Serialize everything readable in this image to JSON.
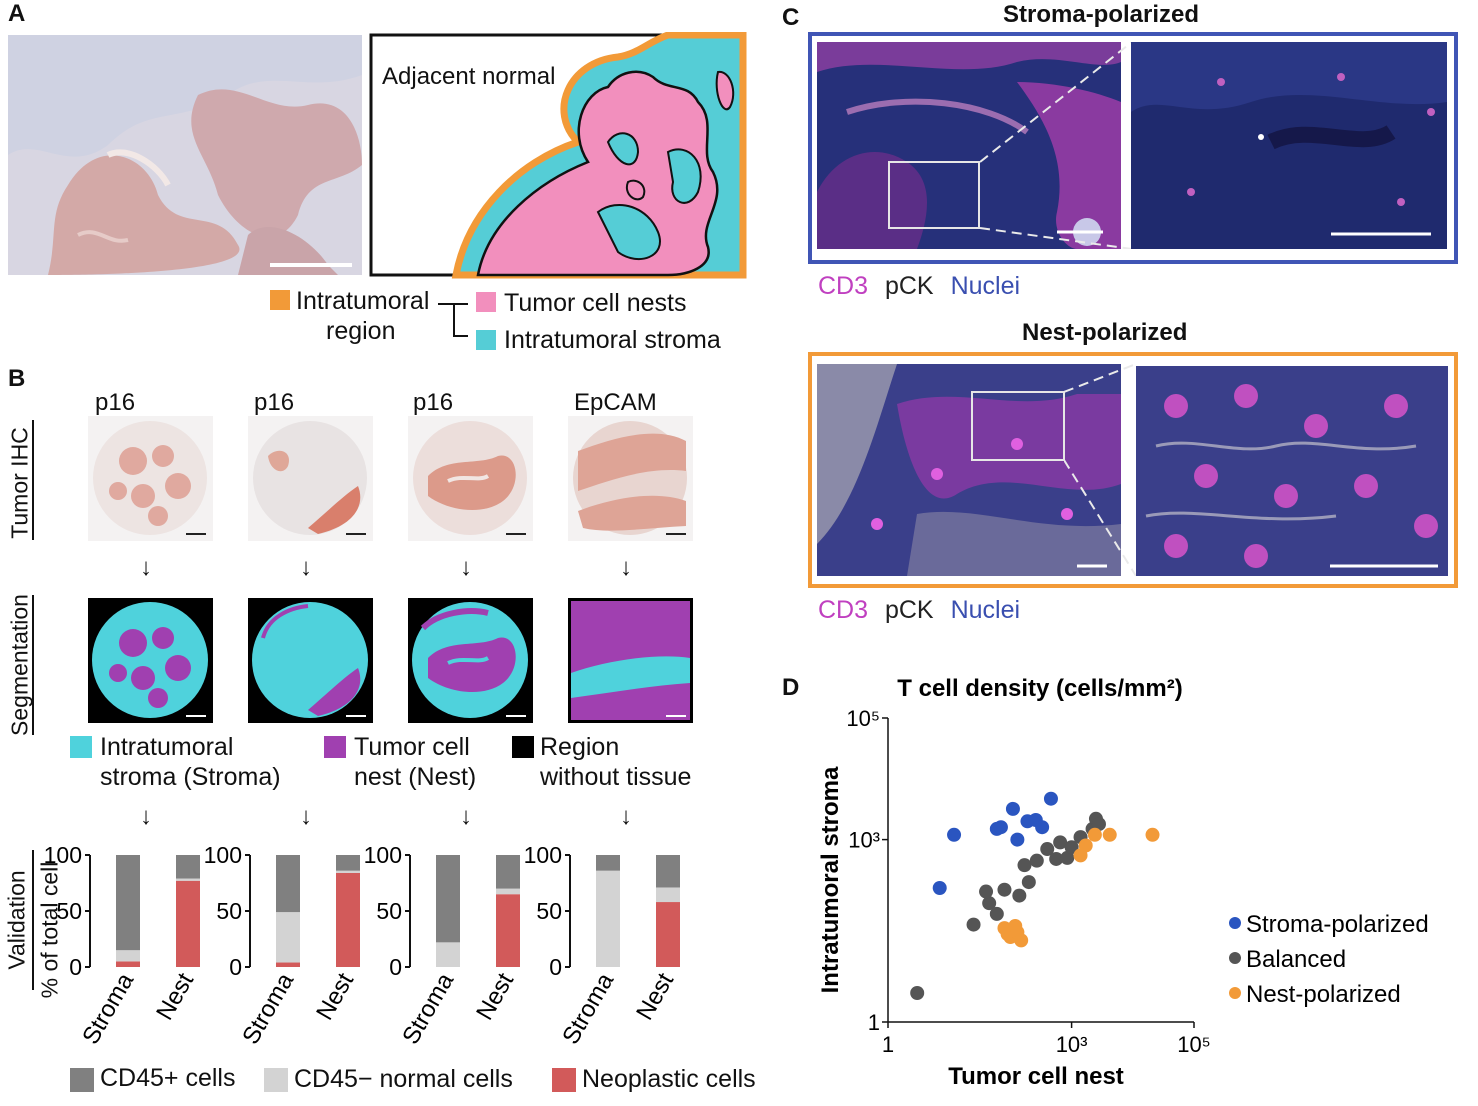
{
  "panels": {
    "a": "A",
    "b": "B",
    "c": "C",
    "d": "D"
  },
  "panel_a": {
    "annotation": "Adjacent normal",
    "legend": {
      "orange_label_line1": "Intratumoral",
      "orange_label_line2": "region",
      "pink_label": "Tumor cell nests",
      "cyan_label": "Intratumoral stroma"
    },
    "colors": {
      "orange": "#f29a38",
      "pink": "#f28fbd",
      "cyan": "#55cdd6"
    }
  },
  "panel_b": {
    "row_labels": {
      "ihc": "Tumor IHC",
      "seg": "Segmentation",
      "val1": "Validation",
      "val2": "% of total cell"
    },
    "markers": [
      "p16",
      "p16",
      "p16",
      "EpCAM"
    ],
    "arrow": "↓",
    "seg_legend": {
      "stroma_line1": "Intratumoral",
      "stroma_line2": "stroma (Stroma)",
      "nest_line1": "Tumor cell",
      "nest_line2": "nest (Nest)",
      "none_line1": "Region",
      "none_line2": "without tissue"
    },
    "seg_colors": {
      "stroma": "#4fd2dc",
      "nest": "#a040b0",
      "none": "#000000"
    },
    "cell_legend": {
      "cd45pos": "CD45+ cells",
      "cd45neg": "CD45− normal cells",
      "neo": "Neoplastic cells"
    },
    "cell_colors": {
      "cd45pos": "#808080",
      "cd45neg": "#d3d3d3",
      "neo": "#d25a5a"
    }
  },
  "panel_c": {
    "title_top": "Stroma-polarized",
    "title_bottom": "Nest-polarized",
    "channels": [
      "CD3",
      "pCK",
      "Nuclei"
    ],
    "channel_colors": [
      "#c040c0",
      "#222222",
      "#3a4fb0"
    ],
    "frame_top_color": "#4055b5",
    "frame_bottom_color": "#f29a38"
  },
  "chart_data": [
    {
      "type": "bar",
      "stacked": true,
      "categories": [
        "Stroma",
        "Nest"
      ],
      "ylabel": "% of total cell",
      "ylim": [
        0,
        100
      ],
      "yticks": [
        "0",
        "50",
        "100"
      ],
      "groups": [
        {
          "marker": "p16",
          "series": [
            {
              "name": "CD45+ cells",
              "values": [
                85,
                21
              ]
            },
            {
              "name": "CD45− normal cells",
              "values": [
                10,
                2
              ]
            },
            {
              "name": "Neoplastic cells",
              "values": [
                5,
                77
              ]
            }
          ]
        },
        {
          "marker": "p16",
          "series": [
            {
              "name": "CD45+ cells",
              "values": [
                51,
                14
              ]
            },
            {
              "name": "CD45− normal cells",
              "values": [
                45,
                2
              ]
            },
            {
              "name": "Neoplastic cells",
              "values": [
                4,
                84
              ]
            }
          ]
        },
        {
          "marker": "p16",
          "series": [
            {
              "name": "CD45+ cells",
              "values": [
                78,
                30
              ]
            },
            {
              "name": "CD45− normal cells",
              "values": [
                22,
                5
              ]
            },
            {
              "name": "Neoplastic cells",
              "values": [
                0,
                65
              ]
            }
          ]
        },
        {
          "marker": "EpCAM",
          "series": [
            {
              "name": "CD45+ cells",
              "values": [
                14,
                29
              ]
            },
            {
              "name": "CD45− normal cells",
              "values": [
                86,
                13
              ]
            },
            {
              "name": "Neoplastic cells",
              "values": [
                0,
                58
              ]
            }
          ]
        }
      ]
    },
    {
      "type": "scatter",
      "title": "T cell density (cells/mm²)",
      "xlabel": "Tumor cell nest",
      "ylabel": "Intratumoral stroma",
      "scale": "log",
      "xlim": [
        1,
        100000
      ],
      "ylim": [
        1,
        100000
      ],
      "xticks": [
        "1",
        "10³",
        "10⁵"
      ],
      "yticks": [
        "1",
        "10³",
        "10⁵"
      ],
      "legend_position": "right",
      "series": [
        {
          "name": "Stroma-polarized",
          "color": "#2a55c0",
          "points": [
            [
              12,
              1200
            ],
            [
              7,
              160
            ],
            [
              60,
              1500
            ],
            [
              70,
              1600
            ],
            [
              110,
              3200
            ],
            [
              130,
              1000
            ],
            [
              190,
              2000
            ],
            [
              260,
              2100
            ],
            [
              330,
              1600
            ],
            [
              460,
              4700
            ]
          ]
        },
        {
          "name": "Balanced",
          "color": "#555555",
          "points": [
            [
              3,
              3
            ],
            [
              25,
              40
            ],
            [
              45,
              90
            ],
            [
              40,
              140
            ],
            [
              60,
              60
            ],
            [
              80,
              150
            ],
            [
              140,
              120
            ],
            [
              170,
              380
            ],
            [
              200,
              200
            ],
            [
              270,
              450
            ],
            [
              400,
              700
            ],
            [
              560,
              480
            ],
            [
              650,
              900
            ],
            [
              850,
              500
            ],
            [
              1000,
              750
            ],
            [
              1400,
              1100
            ],
            [
              2200,
              1500
            ],
            [
              2500,
              2200
            ],
            [
              2800,
              1800
            ]
          ]
        },
        {
          "name": "Nest-polarized",
          "color": "#f29a38",
          "points": [
            [
              80,
              35
            ],
            [
              90,
              28
            ],
            [
              100,
              25
            ],
            [
              105,
              30
            ],
            [
              120,
              38
            ],
            [
              130,
              30
            ],
            [
              150,
              22
            ],
            [
              1400,
              550
            ],
            [
              1700,
              800
            ],
            [
              2400,
              1200
            ],
            [
              4200,
              1200
            ],
            [
              21000,
              1200
            ]
          ]
        }
      ]
    }
  ]
}
